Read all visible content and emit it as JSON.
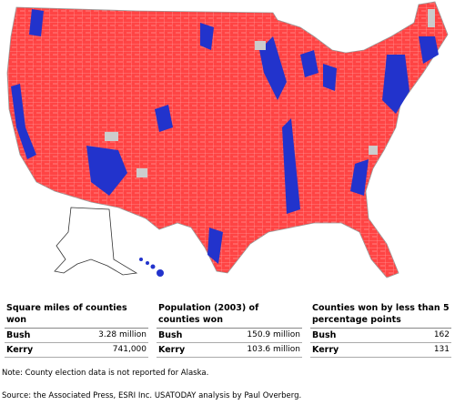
{
  "panels": [
    {
      "title": "Square miles of counties won",
      "rows": [
        [
          "Bush",
          "3.28 million"
        ],
        [
          "Kerry",
          "741,000"
        ]
      ]
    },
    {
      "title": "Population (2003) of counties won",
      "rows": [
        [
          "Bush",
          "150.9 million"
        ],
        [
          "Kerry",
          "103.6 million"
        ]
      ]
    },
    {
      "title": "Counties won by less than 5 percentage points",
      "rows": [
        [
          "Bush",
          "162"
        ],
        [
          "Kerry",
          "131"
        ]
      ]
    }
  ],
  "note": "Note: County election data is not reported for Alaska.",
  "source": "Source: the Associated Press, ESRI Inc. USATODAY analysis by Paul Overberg."
}
